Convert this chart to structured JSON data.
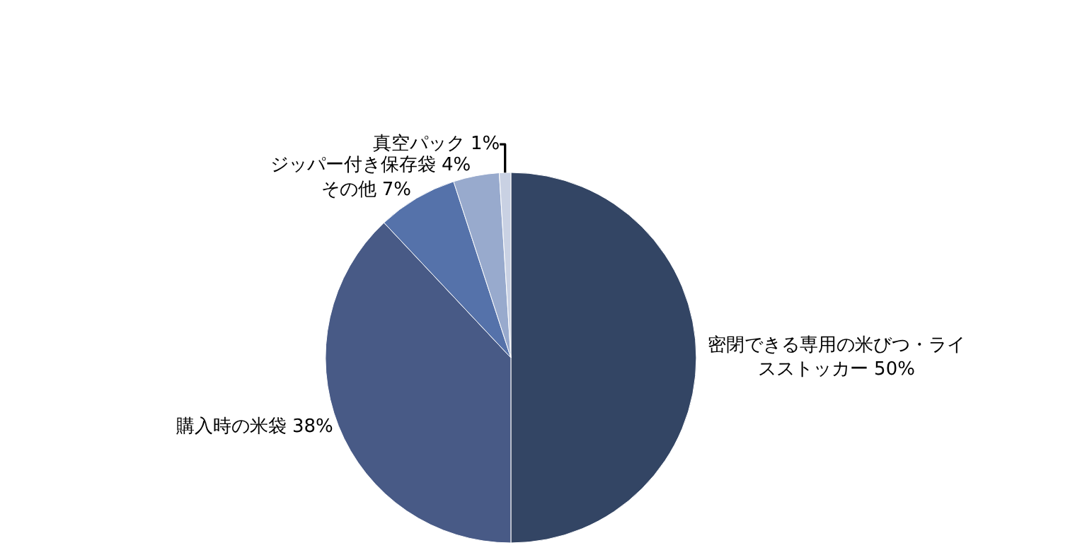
{
  "chart_data": {
    "type": "pie",
    "categories": [
      "密閉できる専用の米びつ・ライスストッカー",
      "購入時の米袋",
      "その他",
      "ジッパー付き保存袋",
      "真空パック"
    ],
    "values": [
      50,
      38,
      7,
      4,
      1
    ],
    "value_labels": [
      "50%",
      "38%",
      "7%",
      "4%",
      "1%"
    ],
    "colors": [
      "#334564",
      "#485a86",
      "#5572aa",
      "#98aacd",
      "#c9d1e3"
    ],
    "legend": false
  }
}
